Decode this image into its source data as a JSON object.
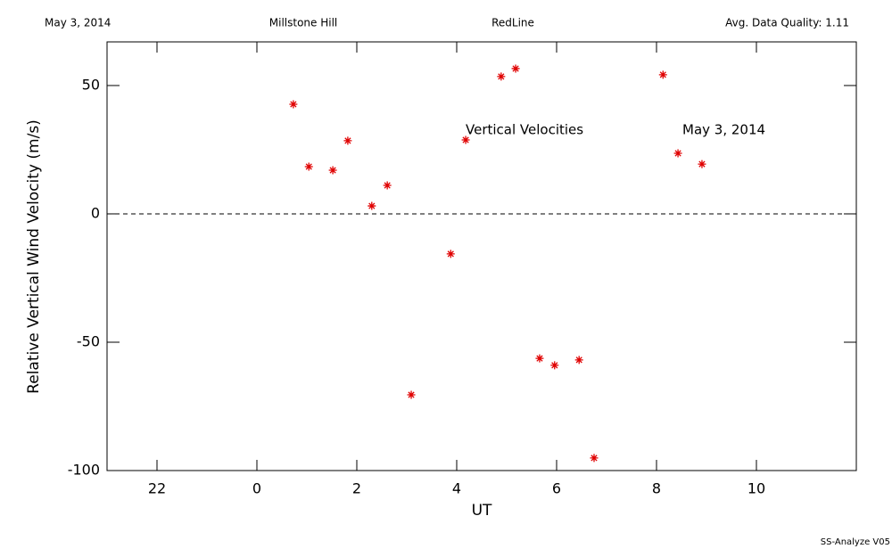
{
  "header": {
    "date": "May 3, 2014",
    "site": "Millstone Hill",
    "instrument": "RedLine",
    "quality": "Avg. Data Quality: 1.11"
  },
  "footer": "SS-Analyze V05",
  "chart_data": {
    "type": "scatter",
    "xlabel": "UT",
    "ylabel": "Relative Vertical Wind Velocity (m/s)",
    "annotations": [
      "Vertical Velocities",
      "May 3, 2014"
    ],
    "xlim": [
      -3,
      12
    ],
    "ylim": [
      -100,
      67
    ],
    "xticks": [
      {
        "value": -2,
        "label": "22"
      },
      0,
      2,
      4,
      6,
      8,
      10
    ],
    "yticks": [
      -100,
      -50,
      0,
      50
    ],
    "hline": 0,
    "series": [
      {
        "color": "#e00000",
        "x": [
          0.73,
          1.04,
          1.52,
          1.82,
          2.3,
          2.61,
          3.09,
          3.88,
          4.18,
          4.89,
          5.18,
          5.66,
          5.96,
          6.45,
          6.75,
          8.13,
          8.43,
          8.91
        ],
        "values": [
          42.7,
          18.4,
          17.0,
          28.5,
          3.1,
          11.1,
          -70.5,
          -15.6,
          28.8,
          53.5,
          56.6,
          -56.3,
          -59.0,
          -56.9,
          -95.1,
          54.2,
          23.6,
          19.4
        ]
      }
    ]
  }
}
